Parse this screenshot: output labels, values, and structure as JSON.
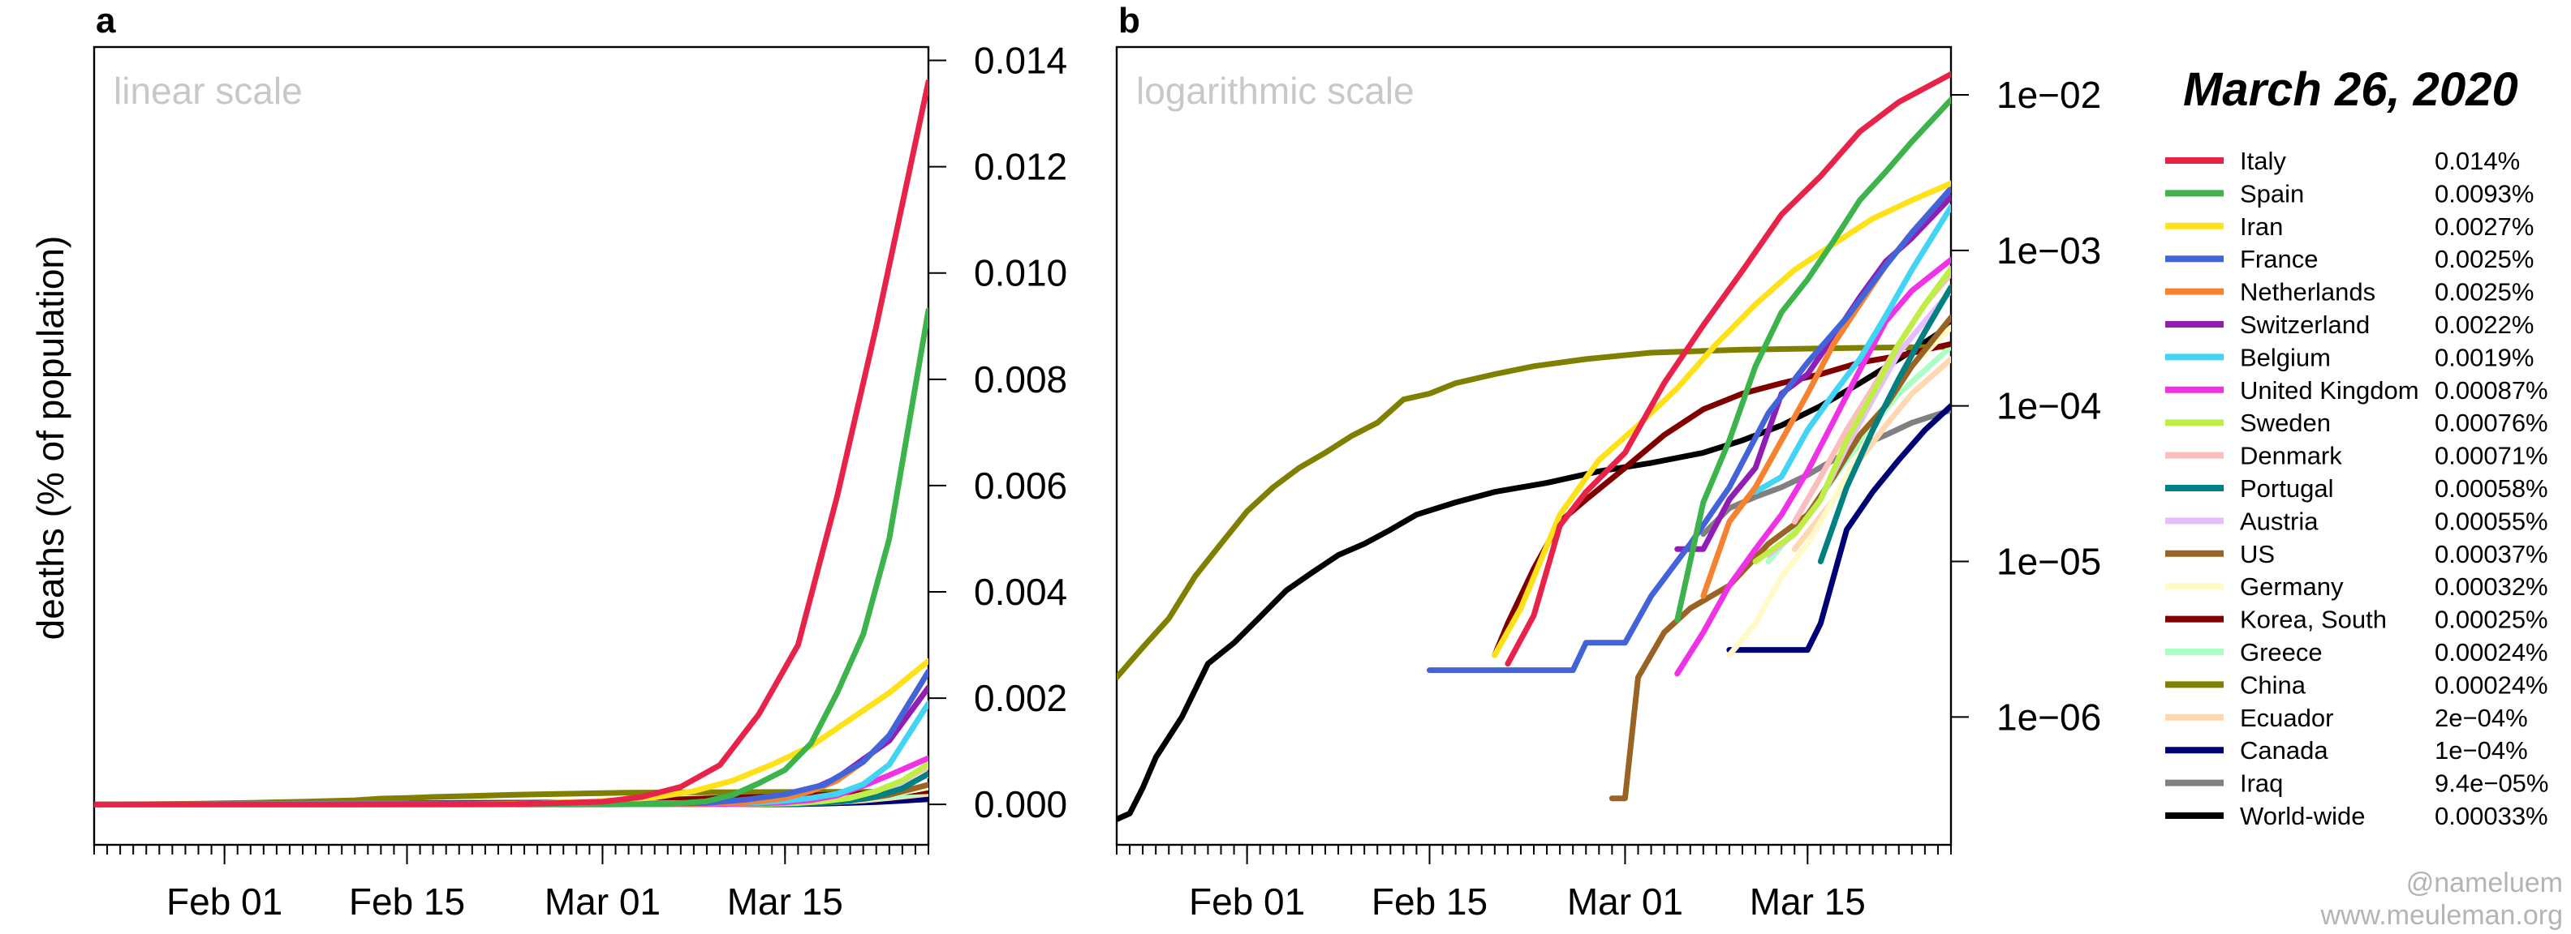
{
  "chart_data": [
    {
      "panel": "a",
      "type": "line",
      "title": "linear scale",
      "ylabel": "deaths (% of population)",
      "xlabel": "",
      "scale": "linear",
      "x_range": [
        "2020-01-22",
        "2020-03-26"
      ],
      "ylim": [
        -0.00015,
        0.0141
      ],
      "y_ticks": [
        0,
        0.002,
        0.004,
        0.006,
        0.008,
        0.01,
        0.012,
        0.014
      ],
      "y_tick_labels": [
        "0.000",
        "0.002",
        "0.004",
        "0.006",
        "0.008",
        "0.010",
        "0.012",
        "0.014"
      ],
      "x_ticks": [
        "2020-02-01",
        "2020-02-15",
        "2020-03-01",
        "2020-03-15"
      ],
      "x_tick_labels": [
        "Feb 01",
        "Feb 15",
        "Mar 01",
        "Mar 15"
      ],
      "grid": false,
      "y_axis_side": "right"
    },
    {
      "panel": "b",
      "type": "line",
      "title": "logarithmic scale",
      "ylabel": "",
      "xlabel": "",
      "scale": "log",
      "x_range": [
        "2020-01-22",
        "2020-03-26"
      ],
      "ylim": [
        1.7e-07,
        0.018
      ],
      "y_ticks": [
        1e-06,
        1e-05,
        0.0001,
        0.001,
        0.01
      ],
      "y_tick_labels": [
        "1e−06",
        "1e−05",
        "1e−04",
        "1e−03",
        "1e−02"
      ],
      "x_ticks": [
        "2020-02-01",
        "2020-02-15",
        "2020-03-01",
        "2020-03-15"
      ],
      "x_tick_labels": [
        "Feb 01",
        "Feb 15",
        "Mar 01",
        "Mar 15"
      ],
      "grid": false,
      "y_axis_side": "right"
    }
  ],
  "series": [
    {
      "name": "Italy",
      "value_label": "0.014%",
      "color": "#e8234a",
      "points": [
        [
          "2020-02-21",
          2.2e-06
        ],
        [
          "2020-02-23",
          4.5e-06
        ],
        [
          "2020-02-25",
          1.7e-05
        ],
        [
          "2020-02-27",
          2.8e-05
        ],
        [
          "2020-03-01",
          5e-05
        ],
        [
          "2020-03-04",
          0.00014
        ],
        [
          "2020-03-07",
          0.00033
        ],
        [
          "2020-03-10",
          0.00074
        ],
        [
          "2020-03-13",
          0.0017
        ],
        [
          "2020-03-16",
          0.003
        ],
        [
          "2020-03-19",
          0.0058
        ],
        [
          "2020-03-22",
          0.009
        ],
        [
          "2020-03-26",
          0.0136
        ]
      ]
    },
    {
      "name": "Spain",
      "value_label": "0.0093%",
      "color": "#3cb44b",
      "points": [
        [
          "2020-03-05",
          4.2e-06
        ],
        [
          "2020-03-07",
          2.4e-05
        ],
        [
          "2020-03-09",
          6e-05
        ],
        [
          "2020-03-11",
          0.00018
        ],
        [
          "2020-03-13",
          0.0004
        ],
        [
          "2020-03-15",
          0.00065
        ],
        [
          "2020-03-17",
          0.00115
        ],
        [
          "2020-03-19",
          0.0021
        ],
        [
          "2020-03-21",
          0.0032
        ],
        [
          "2020-03-23",
          0.005
        ],
        [
          "2020-03-26",
          0.0093
        ]
      ]
    },
    {
      "name": "Iran",
      "value_label": "0.0027%",
      "color": "#ffe119",
      "points": [
        [
          "2020-02-20",
          2.5e-06
        ],
        [
          "2020-02-22",
          5e-06
        ],
        [
          "2020-02-25",
          2e-05
        ],
        [
          "2020-02-28",
          4.5e-05
        ],
        [
          "2020-03-02",
          7.5e-05
        ],
        [
          "2020-03-05",
          0.00013
        ],
        [
          "2020-03-08",
          0.00025
        ],
        [
          "2020-03-11",
          0.00045
        ],
        [
          "2020-03-14",
          0.00075
        ],
        [
          "2020-03-17",
          0.0011
        ],
        [
          "2020-03-20",
          0.0016
        ],
        [
          "2020-03-23",
          0.0021
        ],
        [
          "2020-03-26",
          0.0027
        ]
      ]
    },
    {
      "name": "France",
      "value_label": "0.0025%",
      "color": "#4363d8",
      "points": [
        [
          "2020-02-15",
          2e-06
        ],
        [
          "2020-02-26",
          2e-06
        ],
        [
          "2020-02-27",
          3e-06
        ],
        [
          "2020-03-01",
          3e-06
        ],
        [
          "2020-03-03",
          6e-06
        ],
        [
          "2020-03-06",
          1.3e-05
        ],
        [
          "2020-03-09",
          3e-05
        ],
        [
          "2020-03-12",
          9e-05
        ],
        [
          "2020-03-15",
          0.00019
        ],
        [
          "2020-03-18",
          0.00037
        ],
        [
          "2020-03-21",
          0.0008
        ],
        [
          "2020-03-23",
          0.0013
        ],
        [
          "2020-03-26",
          0.0025
        ]
      ]
    },
    {
      "name": "Netherlands",
      "value_label": "0.0025%",
      "color": "#f58231",
      "points": [
        [
          "2020-03-07",
          6e-06
        ],
        [
          "2020-03-09",
          1.8e-05
        ],
        [
          "2020-03-11",
          3e-05
        ],
        [
          "2020-03-13",
          6e-05
        ],
        [
          "2020-03-15",
          0.00012
        ],
        [
          "2020-03-17",
          0.00025
        ],
        [
          "2020-03-19",
          0.00045
        ],
        [
          "2020-03-21",
          0.0008
        ],
        [
          "2020-03-23",
          0.0013
        ],
        [
          "2020-03-26",
          0.0025
        ]
      ]
    },
    {
      "name": "Switzerland",
      "value_label": "0.0022%",
      "color": "#911eb4",
      "points": [
        [
          "2020-03-05",
          1.2e-05
        ],
        [
          "2020-03-07",
          1.2e-05
        ],
        [
          "2020-03-09",
          2.5e-05
        ],
        [
          "2020-03-11",
          4e-05
        ],
        [
          "2020-03-13",
          0.00012
        ],
        [
          "2020-03-15",
          0.00016
        ],
        [
          "2020-03-17",
          0.00028
        ],
        [
          "2020-03-19",
          0.0005
        ],
        [
          "2020-03-21",
          0.00085
        ],
        [
          "2020-03-23",
          0.0012
        ],
        [
          "2020-03-26",
          0.0022
        ]
      ]
    },
    {
      "name": "Belgium",
      "value_label": "0.0019%",
      "color": "#42d4f4",
      "points": [
        [
          "2020-03-11",
          2.8e-05
        ],
        [
          "2020-03-13",
          3.5e-05
        ],
        [
          "2020-03-15",
          7e-05
        ],
        [
          "2020-03-17",
          0.00012
        ],
        [
          "2020-03-19",
          0.0002
        ],
        [
          "2020-03-21",
          0.00038
        ],
        [
          "2020-03-23",
          0.00075
        ],
        [
          "2020-03-26",
          0.0019
        ]
      ]
    },
    {
      "name": "United Kingdom",
      "value_label": "0.00087%",
      "color": "#f032e6",
      "points": [
        [
          "2020-03-05",
          1.9e-06
        ],
        [
          "2020-03-07",
          3.5e-06
        ],
        [
          "2020-03-09",
          7e-06
        ],
        [
          "2020-03-11",
          1.2e-05
        ],
        [
          "2020-03-13",
          2e-05
        ],
        [
          "2020-03-15",
          3.8e-05
        ],
        [
          "2020-03-17",
          8e-05
        ],
        [
          "2020-03-19",
          0.00017
        ],
        [
          "2020-03-21",
          0.00035
        ],
        [
          "2020-03-23",
          0.00055
        ],
        [
          "2020-03-26",
          0.00087
        ]
      ]
    },
    {
      "name": "Sweden",
      "value_label": "0.00076%",
      "color": "#bfef45",
      "points": [
        [
          "2020-03-11",
          1e-05
        ],
        [
          "2020-03-14",
          1.5e-05
        ],
        [
          "2020-03-16",
          2.5e-05
        ],
        [
          "2020-03-18",
          6e-05
        ],
        [
          "2020-03-20",
          0.00012
        ],
        [
          "2020-03-22",
          0.00025
        ],
        [
          "2020-03-24",
          0.00045
        ],
        [
          "2020-03-26",
          0.00076
        ]
      ]
    },
    {
      "name": "Denmark",
      "value_label": "0.00071%",
      "color": "#fabebe",
      "points": [
        [
          "2020-03-14",
          1.8e-05
        ],
        [
          "2020-03-16",
          3.5e-05
        ],
        [
          "2020-03-18",
          7e-05
        ],
        [
          "2020-03-20",
          0.00013
        ],
        [
          "2020-03-22",
          0.00025
        ],
        [
          "2020-03-24",
          0.00045
        ],
        [
          "2020-03-26",
          0.00071
        ]
      ]
    },
    {
      "name": "Portugal",
      "value_label": "0.00058%",
      "color": "#008080",
      "points": [
        [
          "2020-03-16",
          1e-05
        ],
        [
          "2020-03-18",
          3e-05
        ],
        [
          "2020-03-20",
          7e-05
        ],
        [
          "2020-03-22",
          0.00015
        ],
        [
          "2020-03-24",
          0.0003
        ],
        [
          "2020-03-26",
          0.00058
        ]
      ]
    },
    {
      "name": "Austria",
      "value_label": "0.00055%",
      "color": "#e6beff",
      "points": [
        [
          "2020-03-12",
          1.1e-05
        ],
        [
          "2020-03-14",
          1.5e-05
        ],
        [
          "2020-03-16",
          2.5e-05
        ],
        [
          "2020-03-18",
          5.5e-05
        ],
        [
          "2020-03-20",
          0.00011
        ],
        [
          "2020-03-22",
          0.00022
        ],
        [
          "2020-03-24",
          0.00035
        ],
        [
          "2020-03-26",
          0.00055
        ]
      ]
    },
    {
      "name": "US",
      "value_label": "0.00037%",
      "color": "#9a6324",
      "points": [
        [
          "2020-02-29",
          3e-07
        ],
        [
          "2020-03-01",
          3e-07
        ],
        [
          "2020-03-02",
          1.8e-06
        ],
        [
          "2020-03-04",
          3.5e-06
        ],
        [
          "2020-03-06",
          5e-06
        ],
        [
          "2020-03-09",
          7e-06
        ],
        [
          "2020-03-12",
          1.3e-05
        ],
        [
          "2020-03-15",
          2e-05
        ],
        [
          "2020-03-17",
          3.5e-05
        ],
        [
          "2020-03-19",
          6.5e-05
        ],
        [
          "2020-03-21",
          0.0001
        ],
        [
          "2020-03-23",
          0.00018
        ],
        [
          "2020-03-26",
          0.00037
        ]
      ]
    },
    {
      "name": "Germany",
      "value_label": "0.00032%",
      "color": "#fffac8",
      "points": [
        [
          "2020-03-09",
          2.5e-06
        ],
        [
          "2020-03-11",
          4e-06
        ],
        [
          "2020-03-13",
          8e-06
        ],
        [
          "2020-03-15",
          1.3e-05
        ],
        [
          "2020-03-17",
          2.5e-05
        ],
        [
          "2020-03-19",
          5e-05
        ],
        [
          "2020-03-21",
          0.0001
        ],
        [
          "2020-03-23",
          0.00018
        ],
        [
          "2020-03-26",
          0.00032
        ]
      ]
    },
    {
      "name": "Korea, South",
      "value_label": "0.00025%",
      "color": "#800000",
      "points": [
        [
          "2020-02-20",
          2.5e-06
        ],
        [
          "2020-02-21",
          4e-06
        ],
        [
          "2020-02-23",
          9e-06
        ],
        [
          "2020-02-25",
          1.8e-05
        ],
        [
          "2020-02-27",
          2.5e-05
        ],
        [
          "2020-03-01",
          4e-05
        ],
        [
          "2020-03-04",
          6.5e-05
        ],
        [
          "2020-03-07",
          9.5e-05
        ],
        [
          "2020-03-10",
          0.00012
        ],
        [
          "2020-03-13",
          0.00014
        ],
        [
          "2020-03-16",
          0.00016
        ],
        [
          "2020-03-19",
          0.00019
        ],
        [
          "2020-03-22",
          0.00021
        ],
        [
          "2020-03-26",
          0.00025
        ]
      ]
    },
    {
      "name": "Greece",
      "value_label": "0.00024%",
      "color": "#aaffc3",
      "points": [
        [
          "2020-03-12",
          1e-05
        ],
        [
          "2020-03-15",
          2e-05
        ],
        [
          "2020-03-18",
          4.5e-05
        ],
        [
          "2020-03-20",
          7.5e-05
        ],
        [
          "2020-03-22",
          0.00012
        ],
        [
          "2020-03-24",
          0.00017
        ],
        [
          "2020-03-26",
          0.00024
        ]
      ]
    },
    {
      "name": "China",
      "value_label": "0.00024%",
      "color": "#808000",
      "points": [
        [
          "2020-01-22",
          1.8e-06
        ],
        [
          "2020-01-24",
          2.8e-06
        ],
        [
          "2020-01-26",
          4.3e-06
        ],
        [
          "2020-01-28",
          8e-06
        ],
        [
          "2020-01-30",
          1.3e-05
        ],
        [
          "2020-02-01",
          2.1e-05
        ],
        [
          "2020-02-03",
          3e-05
        ],
        [
          "2020-02-05",
          4e-05
        ],
        [
          "2020-02-07",
          5e-05
        ],
        [
          "2020-02-09",
          6.4e-05
        ],
        [
          "2020-02-11",
          7.8e-05
        ],
        [
          "2020-02-13",
          0.00011
        ],
        [
          "2020-02-15",
          0.00012
        ],
        [
          "2020-02-17",
          0.00014
        ],
        [
          "2020-02-20",
          0.00016
        ],
        [
          "2020-02-23",
          0.00018
        ],
        [
          "2020-02-27",
          0.0002
        ],
        [
          "2020-03-03",
          0.00022
        ],
        [
          "2020-03-10",
          0.00023
        ],
        [
          "2020-03-17",
          0.000235
        ],
        [
          "2020-03-26",
          0.00024
        ]
      ]
    },
    {
      "name": "Ecuador",
      "value_label": "2e−04%",
      "color": "#ffd8b1",
      "points": [
        [
          "2020-03-14",
          1.2e-05
        ],
        [
          "2020-03-17",
          2.5e-05
        ],
        [
          "2020-03-19",
          4.5e-05
        ],
        [
          "2020-03-21",
          7.5e-05
        ],
        [
          "2020-03-23",
          0.00012
        ],
        [
          "2020-03-26",
          0.0002
        ]
      ]
    },
    {
      "name": "Canada",
      "value_label": "1e−04%",
      "color": "#000075",
      "points": [
        [
          "2020-03-09",
          2.7e-06
        ],
        [
          "2020-03-15",
          2.7e-06
        ],
        [
          "2020-03-16",
          4e-06
        ],
        [
          "2020-03-18",
          1.6e-05
        ],
        [
          "2020-03-20",
          2.8e-05
        ],
        [
          "2020-03-22",
          4.5e-05
        ],
        [
          "2020-03-24",
          7e-05
        ],
        [
          "2020-03-26",
          0.0001
        ]
      ]
    },
    {
      "name": "Iraq",
      "value_label": "9.4e−05%",
      "color": "#808080",
      "points": [
        [
          "2020-03-07",
          1.5e-05
        ],
        [
          "2020-03-09",
          2.2e-05
        ],
        [
          "2020-03-11",
          2.6e-05
        ],
        [
          "2020-03-13",
          3e-05
        ],
        [
          "2020-03-15",
          3.6e-05
        ],
        [
          "2020-03-17",
          4.5e-05
        ],
        [
          "2020-03-19",
          5.5e-05
        ],
        [
          "2020-03-21",
          6.5e-05
        ],
        [
          "2020-03-23",
          7.8e-05
        ],
        [
          "2020-03-26",
          9.4e-05
        ]
      ]
    },
    {
      "name": "World-wide",
      "value_label": "0.00033%",
      "color": "#000000",
      "points": [
        [
          "2020-01-22",
          2.2e-07
        ],
        [
          "2020-01-23",
          2.4e-07
        ],
        [
          "2020-01-24",
          3.5e-07
        ],
        [
          "2020-01-25",
          5.5e-07
        ],
        [
          "2020-01-27",
          1e-06
        ],
        [
          "2020-01-29",
          2.2e-06
        ],
        [
          "2020-01-31",
          3e-06
        ],
        [
          "2020-02-02",
          4.4e-06
        ],
        [
          "2020-02-04",
          6.5e-06
        ],
        [
          "2020-02-06",
          8.5e-06
        ],
        [
          "2020-02-08",
          1.1e-05
        ],
        [
          "2020-02-10",
          1.3e-05
        ],
        [
          "2020-02-12",
          1.6e-05
        ],
        [
          "2020-02-14",
          2e-05
        ],
        [
          "2020-02-17",
          2.4e-05
        ],
        [
          "2020-02-20",
          2.8e-05
        ],
        [
          "2020-02-24",
          3.2e-05
        ],
        [
          "2020-02-28",
          3.8e-05
        ],
        [
          "2020-03-03",
          4.3e-05
        ],
        [
          "2020-03-07",
          5e-05
        ],
        [
          "2020-03-10",
          6e-05
        ],
        [
          "2020-03-13",
          7.5e-05
        ],
        [
          "2020-03-16",
          0.0001
        ],
        [
          "2020-03-19",
          0.00014
        ],
        [
          "2020-03-22",
          0.0002
        ],
        [
          "2020-03-26",
          0.00033
        ]
      ]
    }
  ],
  "legend": {
    "title": "March 26, 2020",
    "placement": "right"
  },
  "credits": {
    "handle": "@nameluem",
    "site": "www.meuleman.org"
  }
}
